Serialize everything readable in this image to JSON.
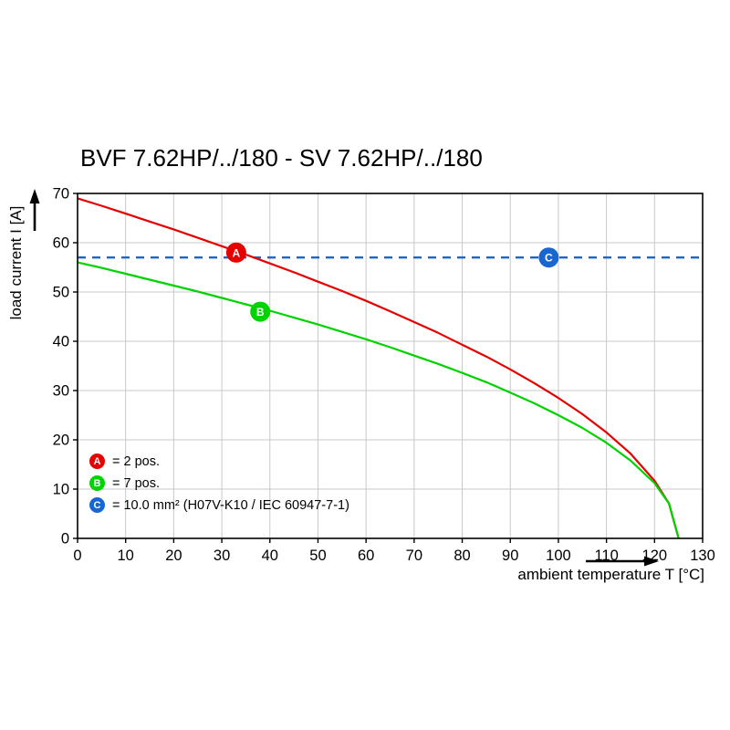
{
  "title": "BVF 7.62HP/../180 - SV 7.62HP/../180",
  "chart_data": {
    "type": "line",
    "title": "BVF 7.62HP/../180 - SV 7.62HP/../180",
    "xlabel": "ambient temperature T [°C]",
    "ylabel": "load current I [A]",
    "xlim": [
      0,
      130
    ],
    "ylim": [
      0,
      70
    ],
    "x_ticks": [
      0,
      10,
      20,
      30,
      40,
      50,
      60,
      70,
      80,
      90,
      100,
      110,
      120,
      130
    ],
    "y_ticks": [
      0,
      10,
      20,
      30,
      40,
      50,
      60,
      70
    ],
    "grid": true,
    "legend_position": "inside bottom-left",
    "series": [
      {
        "key": "limit-10mm2",
        "name": "C = 10.0 mm² (H07V-K10 / IEC 60947-7-1)",
        "color": "#1766d1",
        "style": "dashed",
        "x": [
          0,
          130
        ],
        "y": [
          57,
          57
        ]
      },
      {
        "key": "2pos",
        "name": "A = 2 pos.",
        "color": "#e60000",
        "style": "solid",
        "x": [
          0,
          5,
          10,
          15,
          20,
          25,
          30,
          35,
          40,
          45,
          50,
          55,
          60,
          65,
          70,
          75,
          80,
          85,
          90,
          95,
          100,
          105,
          110,
          115,
          120,
          123,
          125
        ],
        "y": [
          69,
          67.5,
          65.9,
          64.3,
          62.7,
          61,
          59.3,
          57.6,
          55.8,
          54,
          52.1,
          50.2,
          48.2,
          46.1,
          43.9,
          41.7,
          39.3,
          36.9,
          34.3,
          31.5,
          28.5,
          25.2,
          21.5,
          17.2,
          11.7,
          7.1,
          0
        ]
      },
      {
        "key": "7pos",
        "name": "B = 7 pos.",
        "color": "#00d300",
        "style": "solid",
        "x": [
          0,
          5,
          10,
          15,
          20,
          25,
          30,
          35,
          40,
          45,
          50,
          55,
          60,
          65,
          70,
          75,
          80,
          85,
          90,
          95,
          100,
          105,
          110,
          115,
          120,
          123,
          125
        ],
        "y": [
          56,
          54.9,
          53.7,
          52.5,
          51.3,
          50.1,
          48.8,
          47.5,
          46.2,
          44.8,
          43.4,
          41.9,
          40.4,
          38.8,
          37.1,
          35.4,
          33.6,
          31.7,
          29.6,
          27.4,
          25,
          22.4,
          19.4,
          15.8,
          11.2,
          7.1,
          0
        ]
      }
    ],
    "markers": [
      {
        "letter": "A",
        "x": 33,
        "y": 58,
        "color": "#e60000"
      },
      {
        "letter": "B",
        "x": 38,
        "y": 46,
        "color": "#00d300"
      },
      {
        "letter": "C",
        "x": 98,
        "y": 57,
        "color": "#1766d1"
      }
    ]
  },
  "legend": {
    "items": [
      {
        "letter": "A",
        "color": "#e60000",
        "label": "= 2 pos."
      },
      {
        "letter": "B",
        "color": "#00d300",
        "label": "= 7 pos."
      },
      {
        "letter": "C",
        "color": "#1766d1",
        "label": "= 10.0 mm² (H07V-K10 / IEC 60947-7-1)"
      }
    ]
  }
}
